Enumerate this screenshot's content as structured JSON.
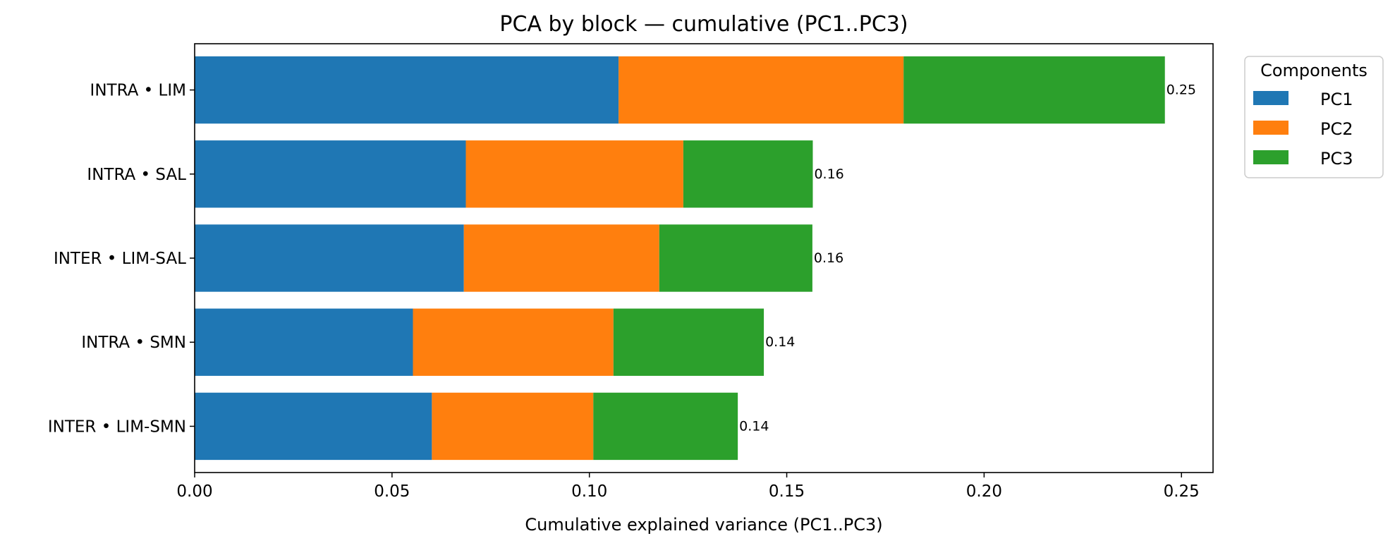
{
  "chart_data": {
    "type": "bar",
    "orientation": "horizontal",
    "stacked": true,
    "title": "PCA by block — cumulative (PC1..PC3)",
    "xlabel": "Cumulative explained variance (PC1..PC3)",
    "ylabel": "",
    "xlim": [
      0,
      0.258
    ],
    "xticks": [
      "0.00",
      "0.05",
      "0.10",
      "0.15",
      "0.20",
      "0.25"
    ],
    "grid": false,
    "categories": [
      "INTRA • LIM",
      "INTRA • SAL",
      "INTER • LIM-SAL",
      "INTRA • SMN",
      "INTER • LIM-SMN"
    ],
    "series": [
      {
        "name": "PC1",
        "color": "#1f77b4",
        "values": [
          0.1074,
          0.0687,
          0.0682,
          0.0553,
          0.0601
        ]
      },
      {
        "name": "PC2",
        "color": "#ff7f0e",
        "values": [
          0.0722,
          0.0551,
          0.0495,
          0.0508,
          0.0409
        ]
      },
      {
        "name": "PC3",
        "color": "#2ca02c",
        "values": [
          0.0662,
          0.0328,
          0.0388,
          0.0381,
          0.0366
        ]
      }
    ],
    "totals_labels": [
      "0.25",
      "0.16",
      "0.16",
      "0.14",
      "0.14"
    ],
    "legend": {
      "title": "Components",
      "placement": "outside-top-right"
    }
  }
}
